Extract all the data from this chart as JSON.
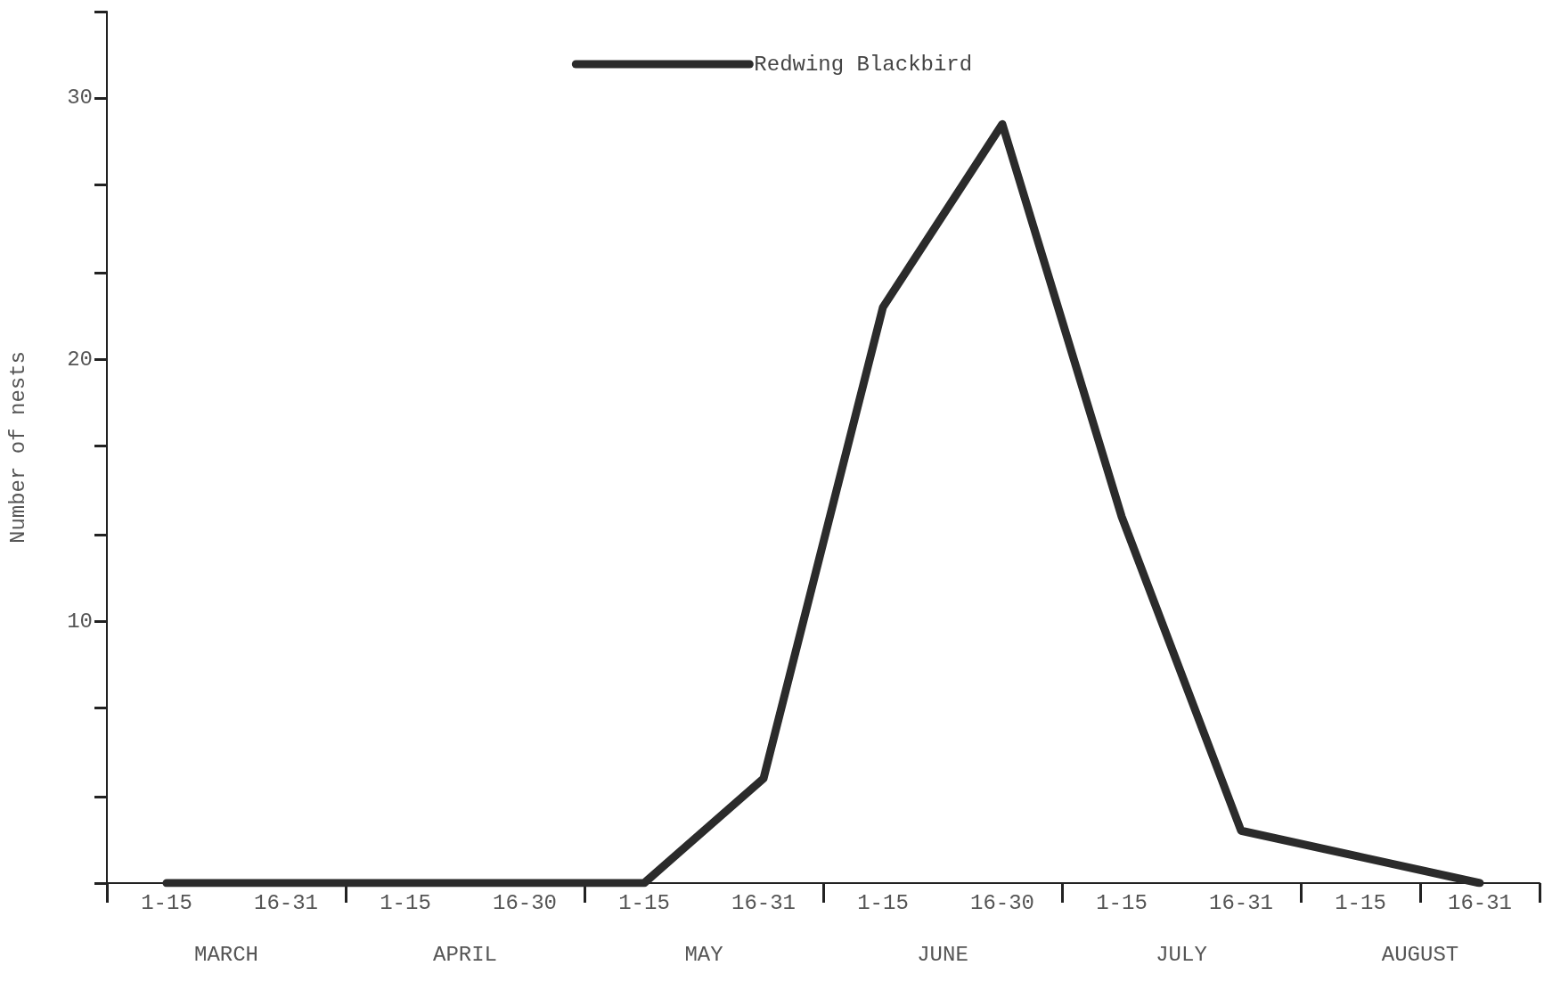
{
  "chart_data": {
    "type": "line",
    "ylabel": "Number of nests",
    "categories": [
      "1-15",
      "16-31",
      "1-15",
      "16-30",
      "1-15",
      "16-31",
      "1-15",
      "16-30",
      "1-15",
      "16-31",
      "1-15",
      "16-31"
    ],
    "series": [
      {
        "name": "Redwing Blackbird",
        "color": "#2b2b2b",
        "values": [
          0,
          0,
          0,
          0,
          0,
          4,
          22,
          29,
          14,
          2,
          1,
          0
        ]
      }
    ],
    "annotations": [
      "MARCH",
      "APRIL",
      "MAY",
      "JUNE",
      "JULY",
      "AUGUST"
    ],
    "ylim": [
      0,
      33.3
    ],
    "yticks": [
      {
        "value": 0,
        "label": null
      },
      {
        "value": 3.3,
        "label": null
      },
      {
        "value": 6.7,
        "label": null
      },
      10,
      {
        "value": 13.3,
        "label": null
      },
      {
        "value": 16.7,
        "label": null
      },
      20,
      {
        "value": 23.3,
        "label": null
      },
      {
        "value": 26.7,
        "label": null
      },
      30,
      {
        "value": 33.3,
        "label": null
      }
    ],
    "grid": false,
    "legend": "top",
    "line_style": "solid"
  }
}
